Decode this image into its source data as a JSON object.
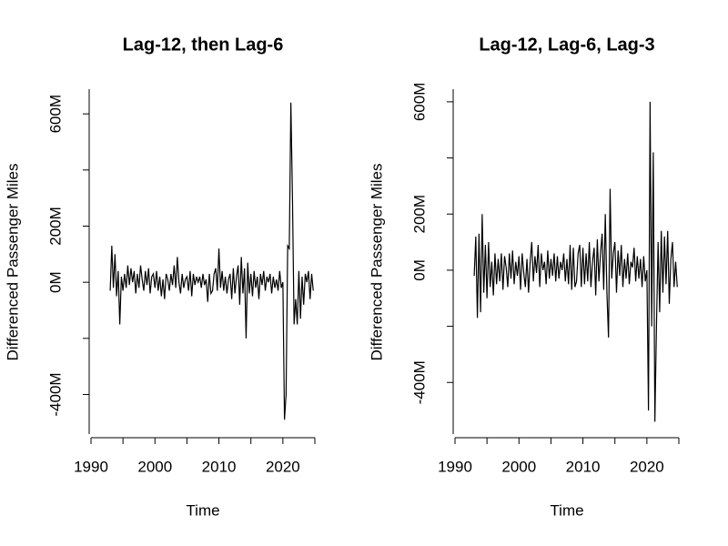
{
  "chart_data": [
    {
      "type": "line",
      "title": "Lag-12, then Lag-6",
      "x_label": "Time",
      "y_label": "Differenced Passenger Miles",
      "xlim": [
        1990,
        2025
      ],
      "ylim": [
        -541,
        688
      ],
      "xticks": [
        1990,
        {
          "value": 1995,
          "label": null
        },
        2000,
        {
          "value": 2005,
          "label": null
        },
        2010,
        {
          "value": 2015,
          "label": null
        },
        2020,
        {
          "value": 2025,
          "label": null
        }
      ],
      "yticks": [
        {
          "value": -400,
          "label": "-400M"
        },
        {
          "value": -200,
          "label": null
        },
        {
          "value": 0,
          "label": "0M"
        },
        {
          "value": 200,
          "label": "200M"
        },
        {
          "value": 400,
          "label": null
        },
        {
          "value": 600,
          "label": "600M"
        }
      ],
      "series": [
        {
          "color": "#000000",
          "x": [
            1993,
            1993.25,
            1993.5,
            1993.75,
            1994,
            1994.25,
            1994.5,
            1994.75,
            1995,
            1995.25,
            1995.5,
            1995.75,
            1996,
            1996.25,
            1996.5,
            1996.75,
            1997,
            1997.25,
            1997.5,
            1997.75,
            1998,
            1998.25,
            1998.5,
            1998.75,
            1999,
            1999.25,
            1999.5,
            1999.75,
            2000,
            2000.25,
            2000.5,
            2000.75,
            2001,
            2001.25,
            2001.5,
            2001.75,
            2002,
            2002.25,
            2002.5,
            2002.75,
            2003,
            2003.25,
            2003.5,
            2003.75,
            2004,
            2004.25,
            2004.5,
            2004.75,
            2005,
            2005.25,
            2005.5,
            2005.75,
            2006,
            2006.25,
            2006.5,
            2006.75,
            2007,
            2007.25,
            2007.5,
            2007.75,
            2008,
            2008.25,
            2008.5,
            2008.75,
            2009,
            2009.25,
            2009.5,
            2009.75,
            2010,
            2010.25,
            2010.5,
            2010.75,
            2011,
            2011.25,
            2011.5,
            2011.75,
            2012,
            2012.25,
            2012.5,
            2012.75,
            2013,
            2013.25,
            2013.5,
            2013.75,
            2014,
            2014.25,
            2014.5,
            2014.75,
            2015,
            2015.25,
            2015.5,
            2015.75,
            2016,
            2016.25,
            2016.5,
            2016.75,
            2017,
            2017.25,
            2017.5,
            2017.75,
            2018,
            2018.25,
            2018.5,
            2018.75,
            2019,
            2019.25,
            2019.5,
            2019.75,
            2020,
            2020.25,
            2020.5,
            2020.75,
            2021,
            2021.25,
            2021.5,
            2021.75,
            2022,
            2022.25,
            2022.5,
            2022.75,
            2023,
            2023.25,
            2023.5,
            2023.75,
            2024,
            2024.25,
            2024.5,
            2024.75
          ],
          "values": [
            -30,
            130,
            -20,
            100,
            -50,
            40,
            -150,
            20,
            -30,
            30,
            -20,
            60,
            -10,
            50,
            0,
            40,
            -40,
            30,
            -20,
            60,
            10,
            -30,
            40,
            -10,
            50,
            -40,
            20,
            30,
            -20,
            40,
            -30,
            20,
            -50,
            10,
            -60,
            30,
            10,
            -30,
            30,
            -10,
            60,
            -20,
            90,
            0,
            -40,
            30,
            -20,
            10,
            20,
            -30,
            40,
            -50,
            30,
            -10,
            20,
            0,
            20,
            -20,
            30,
            -10,
            10,
            -70,
            30,
            -40,
            -30,
            30,
            50,
            -30,
            120,
            -20,
            40,
            -30,
            20,
            -40,
            10,
            30,
            -60,
            50,
            -40,
            20,
            60,
            -80,
            90,
            -40,
            50,
            -200,
            70,
            -40,
            30,
            -50,
            40,
            -20,
            20,
            -60,
            30,
            -10,
            40,
            -30,
            20,
            0,
            30,
            -40,
            20,
            -20,
            10,
            -30,
            40,
            -20,
            0,
            -490,
            -400,
            130,
            120,
            640,
            300,
            -150,
            -60,
            -150,
            40,
            -130,
            20,
            -80,
            30,
            0,
            40,
            -60,
            30,
            -30
          ]
        }
      ]
    },
    {
      "type": "line",
      "title": "Lag-12, Lag-6, Lag-3",
      "x_label": "Time",
      "y_label": "Differenced Passenger Miles",
      "xlim": [
        1990,
        2025
      ],
      "ylim": [
        -584,
        645
      ],
      "xticks": [
        1990,
        {
          "value": 1995,
          "label": null
        },
        2000,
        {
          "value": 2005,
          "label": null
        },
        2010,
        {
          "value": 2015,
          "label": null
        },
        2020,
        {
          "value": 2025,
          "label": null
        }
      ],
      "yticks": [
        {
          "value": -400,
          "label": "-400M"
        },
        {
          "value": -200,
          "label": null
        },
        {
          "value": 0,
          "label": "0M"
        },
        {
          "value": 200,
          "label": "200M"
        },
        {
          "value": 400,
          "label": null
        },
        {
          "value": 600,
          "label": "600M"
        }
      ],
      "series": [
        {
          "color": "#000000",
          "x": [
            1993,
            1993.25,
            1993.5,
            1993.75,
            1994,
            1994.25,
            1994.5,
            1994.75,
            1995,
            1995.25,
            1995.5,
            1995.75,
            1996,
            1996.25,
            1996.5,
            1996.75,
            1997,
            1997.25,
            1997.5,
            1997.75,
            1998,
            1998.25,
            1998.5,
            1998.75,
            1999,
            1999.25,
            1999.5,
            1999.75,
            2000,
            2000.25,
            2000.5,
            2000.75,
            2001,
            2001.25,
            2001.5,
            2001.75,
            2002,
            2002.25,
            2002.5,
            2002.75,
            2003,
            2003.25,
            2003.5,
            2003.75,
            2004,
            2004.25,
            2004.5,
            2004.75,
            2005,
            2005.25,
            2005.5,
            2005.75,
            2006,
            2006.25,
            2006.5,
            2006.75,
            2007,
            2007.25,
            2007.5,
            2007.75,
            2008,
            2008.25,
            2008.5,
            2008.75,
            2009,
            2009.25,
            2009.5,
            2009.75,
            2010,
            2010.25,
            2010.5,
            2010.75,
            2011,
            2011.25,
            2011.5,
            2011.75,
            2012,
            2012.25,
            2012.5,
            2012.75,
            2013,
            2013.25,
            2013.5,
            2013.75,
            2014,
            2014.25,
            2014.5,
            2014.75,
            2015,
            2015.25,
            2015.5,
            2015.75,
            2016,
            2016.25,
            2016.5,
            2016.75,
            2017,
            2017.25,
            2017.5,
            2017.75,
            2018,
            2018.25,
            2018.5,
            2018.75,
            2019,
            2019.25,
            2019.5,
            2019.75,
            2020,
            2020.25,
            2020.5,
            2020.75,
            2021,
            2021.25,
            2021.5,
            2021.75,
            2022,
            2022.25,
            2022.5,
            2022.75,
            2023,
            2023.25,
            2023.5,
            2023.75,
            2024,
            2024.25,
            2024.5,
            2024.75
          ],
          "values": [
            -20,
            120,
            -170,
            130,
            -150,
            200,
            -80,
            90,
            -100,
            100,
            -60,
            30,
            -90,
            60,
            -50,
            40,
            -40,
            60,
            -70,
            50,
            10,
            -60,
            60,
            -30,
            70,
            -50,
            30,
            -20,
            50,
            -70,
            60,
            -10,
            -60,
            40,
            -80,
            30,
            100,
            -40,
            50,
            -10,
            90,
            -60,
            60,
            0,
            30,
            -50,
            70,
            -30,
            40,
            -20,
            60,
            -40,
            50,
            -30,
            30,
            0,
            60,
            -40,
            40,
            -50,
            90,
            -70,
            80,
            -60,
            -40,
            60,
            90,
            -60,
            80,
            -50,
            60,
            -40,
            100,
            -60,
            30,
            80,
            -90,
            110,
            -40,
            60,
            130,
            -70,
            200,
            -80,
            -240,
            290,
            -30,
            60,
            100,
            -80,
            70,
            -20,
            90,
            -60,
            40,
            -30,
            60,
            -50,
            30,
            10,
            80,
            -40,
            50,
            -30,
            40,
            -60,
            50,
            -40,
            0,
            -500,
            600,
            -200,
            420,
            -540,
            -200,
            100,
            -150,
            140,
            -80,
            120,
            -50,
            140,
            -120,
            40,
            100,
            -60,
            30,
            -60
          ]
        }
      ]
    }
  ]
}
